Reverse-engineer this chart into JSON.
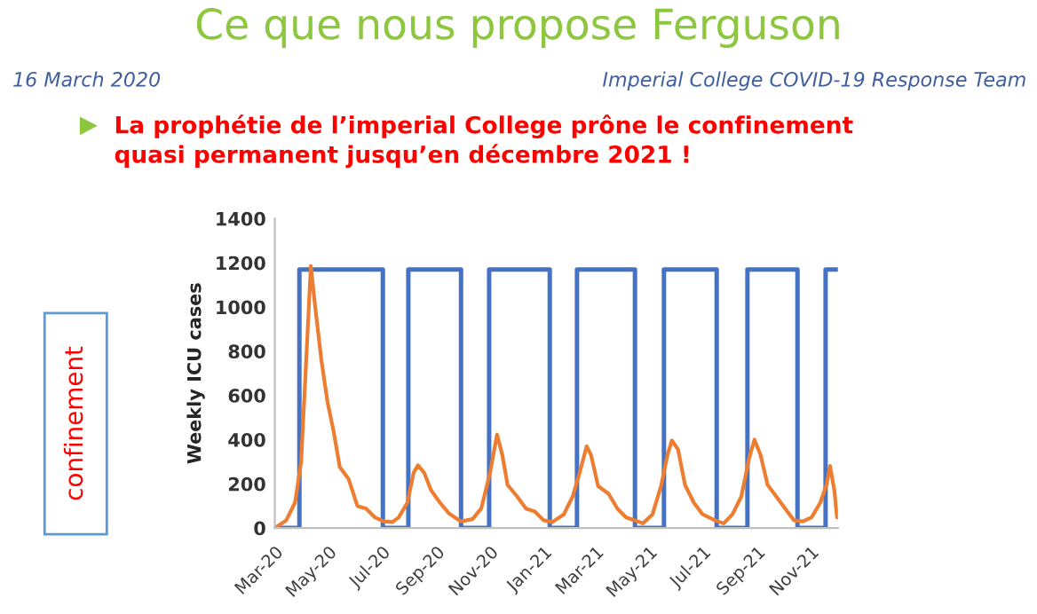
{
  "chart_data": {
    "type": "line",
    "title": "Ce que nous propose Ferguson",
    "ylabel": "Weekly ICU cases",
    "annotations": [
      "16 March 2020",
      "Imperial College COVID-19 Response Team",
      "La prophétie de l’imperial College prône le confinement\nquasi permanent jusqu’en décembre 2021 !",
      "confinement"
    ],
    "series": [
      {
        "type": "step",
        "color": "#4472c4",
        "x": [
          "2020-03-01",
          "2020-03-29",
          "2020-03-29",
          "2020-07-02",
          "2020-07-02",
          "2020-07-31",
          "2020-07-31",
          "2020-09-29",
          "2020-09-29",
          "2020-10-31",
          "2020-10-31",
          "2021-01-08",
          "2021-01-08",
          "2021-02-08",
          "2021-02-08",
          "2021-04-15",
          "2021-04-15",
          "2021-05-18",
          "2021-05-18",
          "2021-07-17",
          "2021-07-17",
          "2021-08-21",
          "2021-08-21",
          "2021-10-17",
          "2021-10-17",
          "2021-11-18",
          "2021-11-18",
          "2021-12-01"
        ],
        "values": [
          0,
          0,
          1170,
          1170,
          0,
          0,
          1170,
          1170,
          0,
          0,
          1170,
          1170,
          0,
          0,
          1170,
          1170,
          0,
          0,
          1170,
          1170,
          0,
          0,
          1170,
          1170,
          0,
          0,
          1170,
          1170
        ]
      },
      {
        "color": "#ed7d31",
        "x": [
          "2020-03-01",
          "2020-03-14",
          "2020-03-24",
          "2020-03-31",
          "2020-04-05",
          "2020-04-11",
          "2020-04-16",
          "2020-04-23",
          "2020-04-30",
          "2020-05-07",
          "2020-05-14",
          "2020-05-24",
          "2020-06-03",
          "2020-06-13",
          "2020-06-23",
          "2020-07-03",
          "2020-07-13",
          "2020-07-20",
          "2020-07-30",
          "2020-08-06",
          "2020-08-11",
          "2020-08-18",
          "2020-08-26",
          "2020-09-05",
          "2020-09-15",
          "2020-09-29",
          "2020-10-12",
          "2020-10-22",
          "2020-11-01",
          "2020-11-09",
          "2020-11-15",
          "2020-11-21",
          "2020-12-02",
          "2020-12-12",
          "2020-12-22",
          "2021-01-01",
          "2021-01-11",
          "2021-01-24",
          "2021-02-03",
          "2021-02-11",
          "2021-02-19",
          "2021-02-24",
          "2021-03-04",
          "2021-03-16",
          "2021-03-26",
          "2021-04-05",
          "2021-04-15",
          "2021-04-24",
          "2021-05-05",
          "2021-05-15",
          "2021-05-22",
          "2021-05-27",
          "2021-06-03",
          "2021-06-11",
          "2021-06-21",
          "2021-07-01",
          "2021-07-15",
          "2021-07-25",
          "2021-08-04",
          "2021-08-14",
          "2021-08-23",
          "2021-08-29",
          "2021-09-05",
          "2021-09-13",
          "2021-09-23",
          "2021-10-03",
          "2021-10-13",
          "2021-10-23",
          "2021-11-02",
          "2021-11-12",
          "2021-11-19",
          "2021-11-23",
          "2021-11-28",
          "2021-12-01"
        ],
        "values": [
          0,
          35,
          115,
          300,
          700,
          1185,
          1000,
          760,
          570,
          436,
          275,
          222,
          100,
          88,
          48,
          30,
          27,
          48,
          115,
          250,
          284,
          250,
          170,
          115,
          67,
          30,
          40,
          88,
          250,
          423,
          330,
          195,
          142,
          88,
          75,
          35,
          27,
          62,
          142,
          250,
          370,
          330,
          190,
          155,
          88,
          48,
          35,
          21,
          62,
          195,
          330,
          396,
          356,
          195,
          115,
          62,
          35,
          21,
          62,
          142,
          316,
          400,
          330,
          195,
          142,
          88,
          35,
          30,
          48,
          115,
          195,
          281,
          170,
          48
        ]
      }
    ],
    "xlim": [
      "2020-03-01",
      "2021-12-02"
    ],
    "xticks": [
      {
        "value": "2020-03-01",
        "label": "Mar-20"
      },
      {
        "value": "2020-05-01",
        "label": "May-20"
      },
      {
        "value": "2020-07-01",
        "label": "Jul-20"
      },
      {
        "value": "2020-09-01",
        "label": "Sep-20"
      },
      {
        "value": "2020-11-01",
        "label": "Nov-20"
      },
      {
        "value": "2021-01-01",
        "label": "Jan-21"
      },
      {
        "value": "2021-03-01",
        "label": "Mar-21"
      },
      {
        "value": "2021-05-01",
        "label": "May-21"
      },
      {
        "value": "2021-07-01",
        "label": "Jul-21"
      },
      {
        "value": "2021-09-01",
        "label": "Sep-21"
      },
      {
        "value": "2021-11-01",
        "label": "Nov-21"
      }
    ],
    "ylim": [
      0,
      1400
    ],
    "yticks": [
      0,
      200,
      400,
      600,
      800,
      1000,
      1200,
      1400
    ],
    "grid": false,
    "legend": false
  }
}
